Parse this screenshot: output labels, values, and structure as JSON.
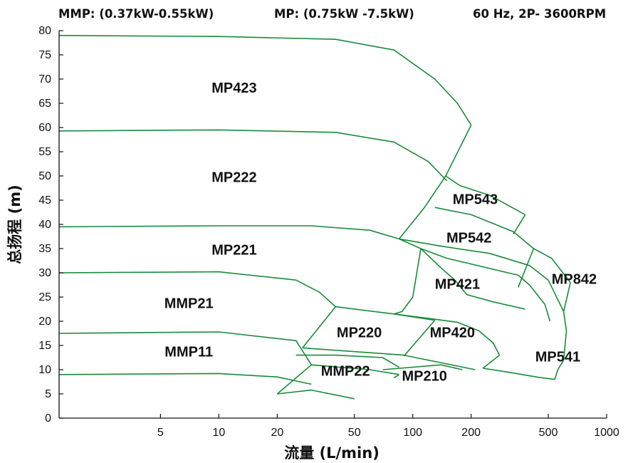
{
  "header": {
    "mmp_range": "MMP: (0.37kW-0.55kW)",
    "mp_range": "MP: (0.75kW -7.5kW)",
    "frequency": "60 Hz, 2P- 3600RPM"
  },
  "chart_data": {
    "type": "line",
    "title": "",
    "xlabel": "流量 (L/min)",
    "ylabel": "总扬程 (m)",
    "x_scale": "log",
    "xlim": [
      1.5,
      1000
    ],
    "ylim": [
      0,
      80
    ],
    "x_ticks": [
      "5",
      "10",
      "20",
      "50",
      "100",
      "200",
      "500",
      "1000"
    ],
    "x_tick_values": [
      5,
      10,
      20,
      50,
      100,
      200,
      500,
      1000
    ],
    "y_ticks": [
      "0",
      "5",
      "10",
      "15",
      "20",
      "25",
      "30",
      "35",
      "40",
      "45",
      "50",
      "55",
      "60",
      "65",
      "70",
      "75",
      "80"
    ],
    "y_tick_values": [
      0,
      5,
      10,
      15,
      20,
      25,
      30,
      35,
      40,
      45,
      50,
      55,
      60,
      65,
      70,
      75,
      80
    ],
    "grid": false,
    "line_color": "#1a8a3a",
    "regions": [
      {
        "name": "MP423",
        "label_at": [
          12,
          68
        ]
      },
      {
        "name": "MP222",
        "label_at": [
          12,
          49.5
        ]
      },
      {
        "name": "MP221",
        "label_at": [
          12,
          34.5
        ]
      },
      {
        "name": "MMP21",
        "label_at": [
          7,
          23.5
        ]
      },
      {
        "name": "MMP11",
        "label_at": [
          7,
          13.5
        ]
      },
      {
        "name": "MMP22",
        "label_at": [
          45,
          9.5
        ]
      },
      {
        "name": "MP220",
        "label_at": [
          53,
          17.5
        ]
      },
      {
        "name": "MP210",
        "label_at": [
          115,
          8.5
        ]
      },
      {
        "name": "MP420",
        "label_at": [
          160,
          17.5
        ]
      },
      {
        "name": "MP421",
        "label_at": [
          170,
          27.5
        ]
      },
      {
        "name": "MP542",
        "label_at": [
          195,
          37
        ]
      },
      {
        "name": "MP543",
        "label_at": [
          210,
          45
        ]
      },
      {
        "name": "MP842",
        "label_at": [
          680,
          28.5
        ]
      },
      {
        "name": "MP541",
        "label_at": [
          560,
          12.5
        ]
      }
    ],
    "series": [
      {
        "points": [
          [
            1.5,
            79
          ],
          [
            10,
            78.8
          ],
          [
            40,
            78.2
          ],
          [
            80,
            76
          ],
          [
            130,
            70
          ],
          [
            170,
            65
          ],
          [
            200,
            60.5
          ]
        ]
      },
      {
        "points": [
          [
            1.5,
            59.3
          ],
          [
            10,
            59.5
          ],
          [
            40,
            59
          ],
          [
            80,
            57
          ],
          [
            120,
            53
          ],
          [
            150,
            49
          ]
        ]
      },
      {
        "points": [
          [
            200,
            60.5
          ],
          [
            148,
            50
          ]
        ]
      },
      {
        "points": [
          [
            148,
            50
          ],
          [
            175,
            48
          ],
          [
            250,
            46
          ],
          [
            380,
            42
          ]
        ]
      },
      {
        "points": [
          [
            380,
            42
          ],
          [
            330,
            38
          ]
        ]
      },
      {
        "points": [
          [
            148,
            50
          ],
          [
            115,
            43.5
          ],
          [
            85,
            37
          ]
        ]
      },
      {
        "points": [
          [
            130,
            43.5
          ],
          [
            200,
            42
          ],
          [
            330,
            38.5
          ],
          [
            420,
            35
          ]
        ]
      },
      {
        "points": [
          [
            1.5,
            39.5
          ],
          [
            10,
            39.7
          ],
          [
            30,
            39.7
          ],
          [
            60,
            38.8
          ],
          [
            85,
            37
          ],
          [
            110,
            35
          ],
          [
            150,
            33
          ]
        ]
      },
      {
        "points": [
          [
            85,
            37
          ],
          [
            140,
            35.5
          ],
          [
            250,
            34
          ],
          [
            400,
            31.5
          ],
          [
            500,
            28.5
          ],
          [
            600,
            22
          ],
          [
            620,
            18
          ]
        ]
      },
      {
        "points": [
          [
            1.5,
            30
          ],
          [
            10,
            30.2
          ],
          [
            25,
            28.5
          ],
          [
            33,
            26
          ],
          [
            40,
            23
          ]
        ]
      },
      {
        "points": [
          [
            110,
            35
          ],
          [
            140,
            31
          ],
          [
            165,
            28.5
          ],
          [
            190,
            25.5
          ],
          [
            260,
            24
          ],
          [
            380,
            22.5
          ]
        ]
      },
      {
        "points": [
          [
            150,
            33
          ],
          [
            350,
            29.5
          ],
          [
            400,
            27.5
          ],
          [
            480,
            23.5
          ],
          [
            510,
            20
          ]
        ]
      },
      {
        "points": [
          [
            420,
            35
          ],
          [
            350,
            27
          ]
        ]
      },
      {
        "points": [
          [
            420,
            35
          ],
          [
            520,
            33
          ],
          [
            650,
            28
          ],
          [
            600,
            22
          ]
        ]
      },
      {
        "points": [
          [
            110,
            35
          ],
          [
            100,
            25
          ],
          [
            88,
            22
          ],
          [
            80,
            21.5
          ]
        ]
      },
      {
        "points": [
          [
            80,
            21.5
          ],
          [
            125,
            20.5
          ]
        ]
      },
      {
        "points": [
          [
            40,
            23
          ],
          [
            27,
            14.5
          ]
        ]
      },
      {
        "points": [
          [
            40,
            23
          ],
          [
            80,
            21.5
          ],
          [
            130,
            20.2
          ]
        ]
      },
      {
        "points": [
          [
            130,
            20.2
          ],
          [
            90,
            12.8
          ]
        ]
      },
      {
        "points": [
          [
            27,
            14.5
          ],
          [
            90,
            13
          ],
          [
            210,
            10
          ]
        ]
      },
      {
        "points": [
          [
            125,
            20.5
          ],
          [
            170,
            19.8
          ],
          [
            220,
            18
          ],
          [
            260,
            15.5
          ],
          [
            280,
            13
          ]
        ]
      },
      {
        "points": [
          [
            280,
            13
          ],
          [
            230,
            10.3
          ]
        ]
      },
      {
        "points": [
          [
            230,
            10.3
          ],
          [
            310,
            9.5
          ],
          [
            450,
            8.4
          ],
          [
            540,
            8
          ]
        ]
      },
      {
        "points": [
          [
            540,
            8
          ],
          [
            560,
            10
          ],
          [
            600,
            12
          ],
          [
            620,
            18
          ]
        ]
      },
      {
        "points": [
          [
            1.5,
            17.5
          ],
          [
            10,
            17.8
          ],
          [
            25,
            16
          ],
          [
            30,
            11
          ]
        ]
      },
      {
        "points": [
          [
            30,
            11
          ],
          [
            20,
            5
          ]
        ]
      },
      {
        "points": [
          [
            1.5,
            9
          ],
          [
            10,
            9.2
          ],
          [
            20,
            8.5
          ],
          [
            30,
            7
          ]
        ]
      },
      {
        "points": [
          [
            20,
            5
          ],
          [
            30,
            5.8
          ],
          [
            50,
            4
          ]
        ]
      },
      {
        "points": [
          [
            30,
            11
          ],
          [
            60,
            10
          ],
          [
            85,
            9
          ]
        ]
      },
      {
        "points": [
          [
            85,
            9
          ],
          [
            80,
            8.3
          ]
        ]
      },
      {
        "points": [
          [
            25,
            13
          ],
          [
            40,
            13
          ],
          [
            70,
            12.5
          ],
          [
            85,
            10.5
          ]
        ]
      },
      {
        "points": [
          [
            70,
            10
          ],
          [
            140,
            11
          ]
        ]
      },
      {
        "points": [
          [
            140,
            11
          ],
          [
            180,
            10
          ]
        ]
      }
    ]
  }
}
